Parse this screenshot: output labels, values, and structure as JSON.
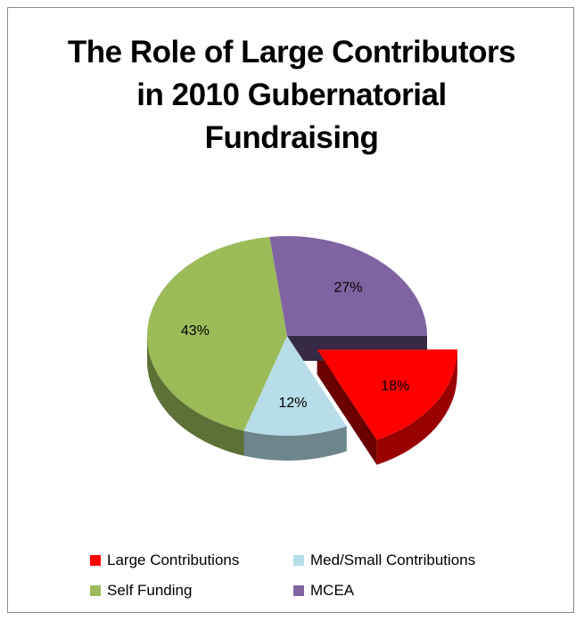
{
  "chart_data": {
    "type": "pie",
    "title_lines": [
      "The Role of Large Contributors",
      "in 2010 Gubernatorial",
      "Fundraising"
    ],
    "slices": [
      {
        "name": "Large Contributions",
        "value": 18,
        "label": "18%",
        "color": "#ff0000",
        "exploded": true
      },
      {
        "name": "Med/Small Contributions",
        "value": 12,
        "label": "12%",
        "color": "#b7dde8"
      },
      {
        "name": "Self Funding",
        "value": 43,
        "label": "43%",
        "color": "#9bbb59"
      },
      {
        "name": "MCEA",
        "value": 27,
        "label": "27%",
        "color": "#8064a2"
      }
    ],
    "legend": {
      "placement": "bottom",
      "entries": [
        "Large Contributions",
        "Med/Small Contributions",
        "Self Funding",
        "MCEA"
      ]
    },
    "style": "3d-exploded"
  }
}
